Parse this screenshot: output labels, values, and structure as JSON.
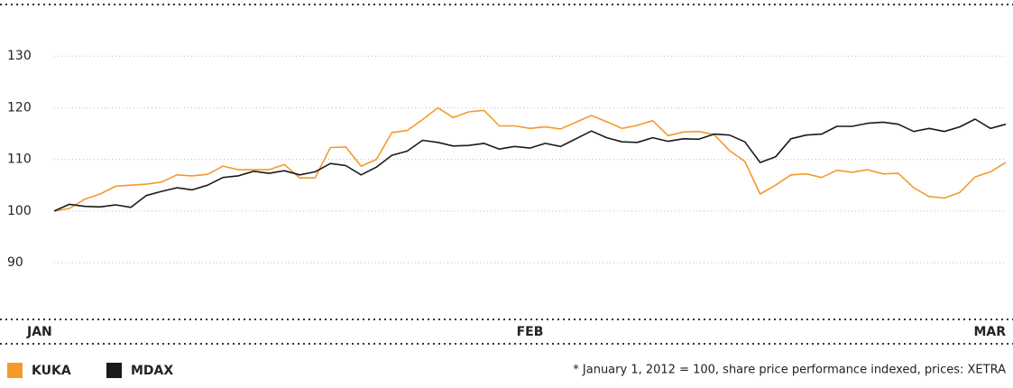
{
  "chart_data": {
    "type": "line",
    "categories": [
      "JAN",
      null,
      null,
      null,
      null,
      null,
      null,
      null,
      null,
      null,
      null,
      null,
      null,
      null,
      null,
      null,
      null,
      null,
      null,
      null,
      null,
      null,
      null,
      null,
      null,
      null,
      null,
      null,
      null,
      null,
      null,
      "FEB",
      null,
      null,
      null,
      null,
      null,
      null,
      null,
      null,
      null,
      null,
      null,
      null,
      null,
      null,
      null,
      null,
      null,
      null,
      null,
      null,
      null,
      null,
      null,
      null,
      null,
      null,
      null,
      null,
      null,
      null,
      "MAR"
    ],
    "series": [
      {
        "name": "KUKA",
        "color": "#f39a2b",
        "values": [
          100,
          100.5,
          102.3,
          103.3,
          104.8,
          105,
          105.2,
          105.6,
          107,
          106.8,
          107.1,
          108.7,
          108,
          108,
          108,
          109,
          106.4,
          106.4,
          112.3,
          112.4,
          108.7,
          110,
          115.2,
          115.6,
          117.7,
          120,
          118.1,
          119.2,
          119.5,
          116.5,
          116.5,
          116,
          116.3,
          115.9,
          117.2,
          118.5,
          117.3,
          116,
          116.6,
          117.5,
          114.6,
          115.3,
          115.4,
          114.8,
          111.7,
          109.6,
          103.3,
          105,
          107,
          107.2,
          106.5,
          107.9,
          107.5,
          108,
          107.2,
          107.3,
          104.5,
          102.8,
          102.5,
          103.6,
          106.6,
          107.6,
          109.4
        ]
      },
      {
        "name": "MDAX",
        "color": "#1a1a1a",
        "values": [
          100,
          101.3,
          100.9,
          100.8,
          101.2,
          100.7,
          103,
          103.8,
          104.5,
          104.1,
          105,
          106.5,
          106.8,
          107.7,
          107.3,
          107.8,
          107,
          107.6,
          109.2,
          108.8,
          107,
          108.5,
          110.8,
          111.6,
          113.7,
          113.3,
          112.6,
          112.7,
          113.1,
          112,
          112.5,
          112.2,
          113.1,
          112.5,
          114,
          115.5,
          114.2,
          113.4,
          113.3,
          114.2,
          113.5,
          114,
          113.9,
          114.9,
          114.7,
          113.4,
          109.4,
          110.5,
          114,
          114.7,
          114.9,
          116.4,
          116.4,
          117,
          117.2,
          116.8,
          115.4,
          116,
          115.4,
          116.3,
          117.8,
          116,
          116.8
        ]
      }
    ],
    "ylim": [
      79,
      140
    ],
    "yticks": [
      90,
      100,
      110,
      120,
      130
    ],
    "grid": true,
    "footnote": "* January 1, 2012 = 100, share price performance indexed, prices: XETRA"
  }
}
